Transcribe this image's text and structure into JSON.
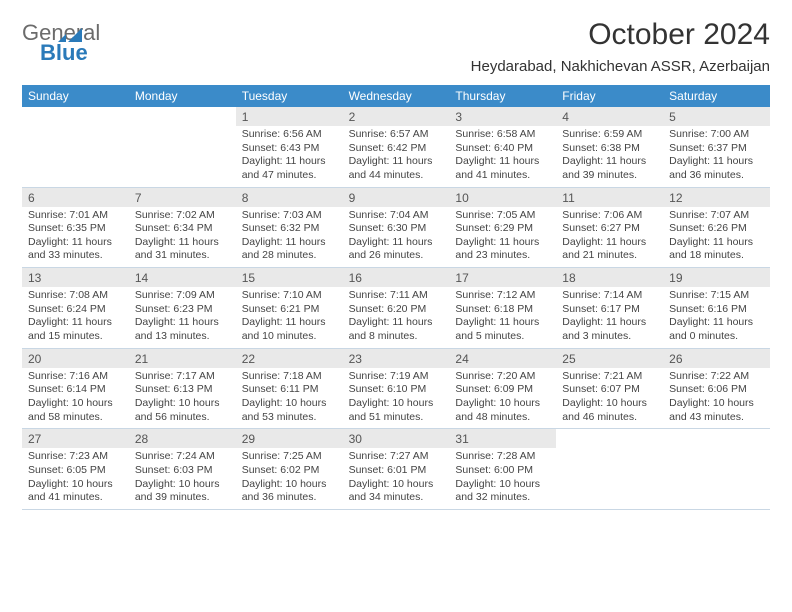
{
  "logo": {
    "word1": "General",
    "word2": "Blue"
  },
  "title": "October 2024",
  "location": "Heydarabad, Nakhichevan ASSR, Azerbaijan",
  "colors": {
    "header_bg": "#3b8bc9",
    "header_text": "#ffffff",
    "daynum_bg": "#e9e9e9",
    "border": "#c9d7e4",
    "text": "#333333",
    "logo_gray": "#6b6b6b",
    "logo_blue": "#2a7ab9"
  },
  "day_names": [
    "Sunday",
    "Monday",
    "Tuesday",
    "Wednesday",
    "Thursday",
    "Friday",
    "Saturday"
  ],
  "weeks": [
    [
      {
        "n": "",
        "sr": "",
        "ss": "",
        "dl": "",
        "empty": true
      },
      {
        "n": "",
        "sr": "",
        "ss": "",
        "dl": "",
        "empty": true
      },
      {
        "n": "1",
        "sr": "Sunrise: 6:56 AM",
        "ss": "Sunset: 6:43 PM",
        "dl": "Daylight: 11 hours and 47 minutes."
      },
      {
        "n": "2",
        "sr": "Sunrise: 6:57 AM",
        "ss": "Sunset: 6:42 PM",
        "dl": "Daylight: 11 hours and 44 minutes."
      },
      {
        "n": "3",
        "sr": "Sunrise: 6:58 AM",
        "ss": "Sunset: 6:40 PM",
        "dl": "Daylight: 11 hours and 41 minutes."
      },
      {
        "n": "4",
        "sr": "Sunrise: 6:59 AM",
        "ss": "Sunset: 6:38 PM",
        "dl": "Daylight: 11 hours and 39 minutes."
      },
      {
        "n": "5",
        "sr": "Sunrise: 7:00 AM",
        "ss": "Sunset: 6:37 PM",
        "dl": "Daylight: 11 hours and 36 minutes."
      }
    ],
    [
      {
        "n": "6",
        "sr": "Sunrise: 7:01 AM",
        "ss": "Sunset: 6:35 PM",
        "dl": "Daylight: 11 hours and 33 minutes."
      },
      {
        "n": "7",
        "sr": "Sunrise: 7:02 AM",
        "ss": "Sunset: 6:34 PM",
        "dl": "Daylight: 11 hours and 31 minutes."
      },
      {
        "n": "8",
        "sr": "Sunrise: 7:03 AM",
        "ss": "Sunset: 6:32 PM",
        "dl": "Daylight: 11 hours and 28 minutes."
      },
      {
        "n": "9",
        "sr": "Sunrise: 7:04 AM",
        "ss": "Sunset: 6:30 PM",
        "dl": "Daylight: 11 hours and 26 minutes."
      },
      {
        "n": "10",
        "sr": "Sunrise: 7:05 AM",
        "ss": "Sunset: 6:29 PM",
        "dl": "Daylight: 11 hours and 23 minutes."
      },
      {
        "n": "11",
        "sr": "Sunrise: 7:06 AM",
        "ss": "Sunset: 6:27 PM",
        "dl": "Daylight: 11 hours and 21 minutes."
      },
      {
        "n": "12",
        "sr": "Sunrise: 7:07 AM",
        "ss": "Sunset: 6:26 PM",
        "dl": "Daylight: 11 hours and 18 minutes."
      }
    ],
    [
      {
        "n": "13",
        "sr": "Sunrise: 7:08 AM",
        "ss": "Sunset: 6:24 PM",
        "dl": "Daylight: 11 hours and 15 minutes."
      },
      {
        "n": "14",
        "sr": "Sunrise: 7:09 AM",
        "ss": "Sunset: 6:23 PM",
        "dl": "Daylight: 11 hours and 13 minutes."
      },
      {
        "n": "15",
        "sr": "Sunrise: 7:10 AM",
        "ss": "Sunset: 6:21 PM",
        "dl": "Daylight: 11 hours and 10 minutes."
      },
      {
        "n": "16",
        "sr": "Sunrise: 7:11 AM",
        "ss": "Sunset: 6:20 PM",
        "dl": "Daylight: 11 hours and 8 minutes."
      },
      {
        "n": "17",
        "sr": "Sunrise: 7:12 AM",
        "ss": "Sunset: 6:18 PM",
        "dl": "Daylight: 11 hours and 5 minutes."
      },
      {
        "n": "18",
        "sr": "Sunrise: 7:14 AM",
        "ss": "Sunset: 6:17 PM",
        "dl": "Daylight: 11 hours and 3 minutes."
      },
      {
        "n": "19",
        "sr": "Sunrise: 7:15 AM",
        "ss": "Sunset: 6:16 PM",
        "dl": "Daylight: 11 hours and 0 minutes."
      }
    ],
    [
      {
        "n": "20",
        "sr": "Sunrise: 7:16 AM",
        "ss": "Sunset: 6:14 PM",
        "dl": "Daylight: 10 hours and 58 minutes."
      },
      {
        "n": "21",
        "sr": "Sunrise: 7:17 AM",
        "ss": "Sunset: 6:13 PM",
        "dl": "Daylight: 10 hours and 56 minutes."
      },
      {
        "n": "22",
        "sr": "Sunrise: 7:18 AM",
        "ss": "Sunset: 6:11 PM",
        "dl": "Daylight: 10 hours and 53 minutes."
      },
      {
        "n": "23",
        "sr": "Sunrise: 7:19 AM",
        "ss": "Sunset: 6:10 PM",
        "dl": "Daylight: 10 hours and 51 minutes."
      },
      {
        "n": "24",
        "sr": "Sunrise: 7:20 AM",
        "ss": "Sunset: 6:09 PM",
        "dl": "Daylight: 10 hours and 48 minutes."
      },
      {
        "n": "25",
        "sr": "Sunrise: 7:21 AM",
        "ss": "Sunset: 6:07 PM",
        "dl": "Daylight: 10 hours and 46 minutes."
      },
      {
        "n": "26",
        "sr": "Sunrise: 7:22 AM",
        "ss": "Sunset: 6:06 PM",
        "dl": "Daylight: 10 hours and 43 minutes."
      }
    ],
    [
      {
        "n": "27",
        "sr": "Sunrise: 7:23 AM",
        "ss": "Sunset: 6:05 PM",
        "dl": "Daylight: 10 hours and 41 minutes."
      },
      {
        "n": "28",
        "sr": "Sunrise: 7:24 AM",
        "ss": "Sunset: 6:03 PM",
        "dl": "Daylight: 10 hours and 39 minutes."
      },
      {
        "n": "29",
        "sr": "Sunrise: 7:25 AM",
        "ss": "Sunset: 6:02 PM",
        "dl": "Daylight: 10 hours and 36 minutes."
      },
      {
        "n": "30",
        "sr": "Sunrise: 7:27 AM",
        "ss": "Sunset: 6:01 PM",
        "dl": "Daylight: 10 hours and 34 minutes."
      },
      {
        "n": "31",
        "sr": "Sunrise: 7:28 AM",
        "ss": "Sunset: 6:00 PM",
        "dl": "Daylight: 10 hours and 32 minutes."
      },
      {
        "n": "",
        "sr": "",
        "ss": "",
        "dl": "",
        "empty": true
      },
      {
        "n": "",
        "sr": "",
        "ss": "",
        "dl": "",
        "empty": true
      }
    ]
  ]
}
